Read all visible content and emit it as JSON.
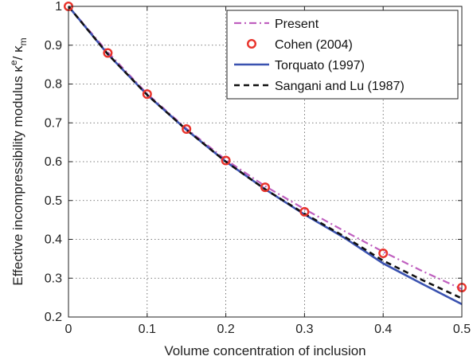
{
  "chart_data": {
    "type": "line",
    "xlabel": "Volume concentration of inclusion",
    "ylabel": "Effective incompressibility modulus  κ",
    "ylabel_sup": "e",
    "ylabel_mid": "/ κ",
    "ylabel_sub": "m",
    "xlim": [
      0,
      0.5
    ],
    "ylim": [
      0.2,
      1.0
    ],
    "xticks": [
      "0",
      "0.1",
      "0.2",
      "0.3",
      "0.4",
      "0.5"
    ],
    "yticks": [
      "0.2",
      "0.3",
      "0.4",
      "0.5",
      "0.6",
      "0.7",
      "0.8",
      "0.9",
      "1"
    ],
    "grid": true,
    "legend_position": "top-right",
    "series": [
      {
        "name": "Present",
        "style": "dash-dot",
        "color": "#bf5fbf",
        "x": [
          0,
          0.05,
          0.1,
          0.15,
          0.2,
          0.25,
          0.3,
          0.35,
          0.4,
          0.45,
          0.5
        ],
        "y": [
          1.0,
          0.882,
          0.775,
          0.685,
          0.605,
          0.537,
          0.478,
          0.422,
          0.368,
          0.318,
          0.272
        ]
      },
      {
        "name": "Cohen (2004)",
        "style": "circle-markers",
        "color": "#e8332b",
        "x": [
          0,
          0.05,
          0.1,
          0.15,
          0.2,
          0.25,
          0.3,
          0.4,
          0.5
        ],
        "y": [
          1.0,
          0.88,
          0.774,
          0.684,
          0.603,
          0.534,
          0.471,
          0.364,
          0.276
        ]
      },
      {
        "name": "Torquato (1997)",
        "style": "solid",
        "color": "#3a52b0",
        "x": [
          0,
          0.05,
          0.1,
          0.15,
          0.2,
          0.25,
          0.3,
          0.35,
          0.4,
          0.45,
          0.5
        ],
        "y": [
          1.0,
          0.877,
          0.772,
          0.682,
          0.6,
          0.529,
          0.464,
          0.405,
          0.338,
          0.285,
          0.233
        ]
      },
      {
        "name": "Sangani and Lu (1987)",
        "style": "dashed",
        "color": "#111111",
        "x": [
          0,
          0.05,
          0.1,
          0.15,
          0.2,
          0.25,
          0.3,
          0.35,
          0.4,
          0.45,
          0.5
        ],
        "y": [
          1.0,
          0.877,
          0.772,
          0.682,
          0.6,
          0.529,
          0.466,
          0.408,
          0.345,
          0.295,
          0.248
        ]
      }
    ]
  }
}
